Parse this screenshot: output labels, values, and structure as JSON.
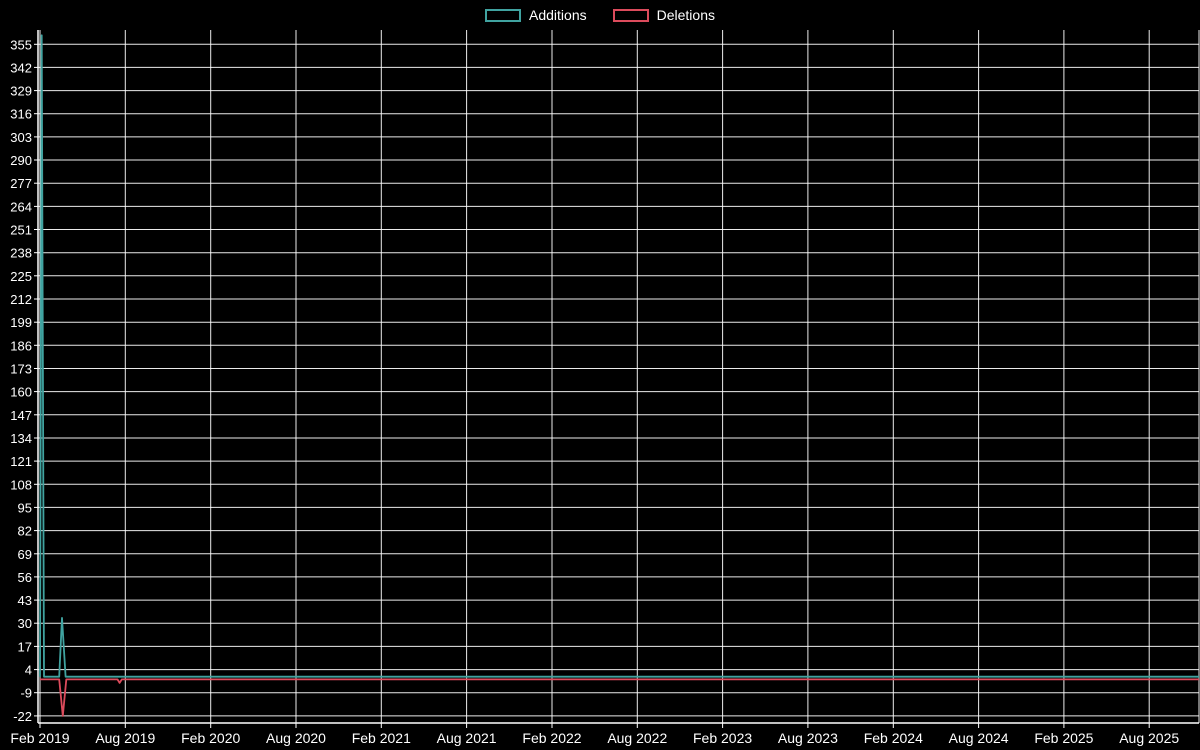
{
  "page": {
    "background": "#000000"
  },
  "colors": {
    "background": "#000000",
    "grid": "#ffffff",
    "axis": "#ffffff",
    "text": "#ffffff",
    "additions": "#40a3a0",
    "deletions": "#dc4b5c"
  },
  "legend": {
    "position": "top-center",
    "items": [
      {
        "label": "Additions",
        "color": "#40a3a0"
      },
      {
        "label": "Deletions",
        "color": "#dc4b5c"
      }
    ]
  },
  "chart_data": {
    "type": "line",
    "title": "",
    "xlabel": "",
    "ylabel": "",
    "grid": true,
    "legend_position": "top-center",
    "x_unit": "months since Feb 2019",
    "x_range": [
      0,
      81.5
    ],
    "ylim": [
      -26,
      363
    ],
    "y_tick_step": 13,
    "y_ticks": [
      355,
      342,
      329,
      316,
      303,
      290,
      277,
      264,
      251,
      238,
      225,
      212,
      199,
      186,
      173,
      160,
      147,
      134,
      121,
      108,
      95,
      82,
      69,
      56,
      43,
      30,
      17,
      4,
      -9,
      -22
    ],
    "x_ticks": [
      {
        "pos": 0,
        "label": "Feb 2019"
      },
      {
        "pos": 6,
        "label": "Aug 2019"
      },
      {
        "pos": 12,
        "label": "Feb 2020"
      },
      {
        "pos": 18,
        "label": "Aug 2020"
      },
      {
        "pos": 24,
        "label": "Feb 2021"
      },
      {
        "pos": 30,
        "label": "Aug 2021"
      },
      {
        "pos": 36,
        "label": "Feb 2022"
      },
      {
        "pos": 42,
        "label": "Aug 2022"
      },
      {
        "pos": 48,
        "label": "Feb 2023"
      },
      {
        "pos": 54,
        "label": "Aug 2023"
      },
      {
        "pos": 60,
        "label": "Feb 2024"
      },
      {
        "pos": 66,
        "label": "Aug 2024"
      },
      {
        "pos": 72,
        "label": "Feb 2025"
      },
      {
        "pos": 78,
        "label": "Aug 2025"
      }
    ],
    "series": [
      {
        "name": "Additions",
        "color": "#40a3a0",
        "points": [
          [
            0.0,
            0
          ],
          [
            0.12,
            360
          ],
          [
            0.28,
            0
          ],
          [
            1.35,
            0
          ],
          [
            1.55,
            33
          ],
          [
            1.8,
            0
          ],
          [
            81.5,
            0
          ]
        ]
      },
      {
        "name": "Deletions",
        "color": "#dc4b5c",
        "points": [
          [
            0.0,
            -1.5
          ],
          [
            1.35,
            -1.5
          ],
          [
            1.6,
            -22
          ],
          [
            1.85,
            -1.5
          ],
          [
            5.45,
            -1.5
          ],
          [
            5.6,
            -3.5
          ],
          [
            5.75,
            -1.5
          ],
          [
            81.5,
            -1.5
          ]
        ]
      }
    ]
  }
}
